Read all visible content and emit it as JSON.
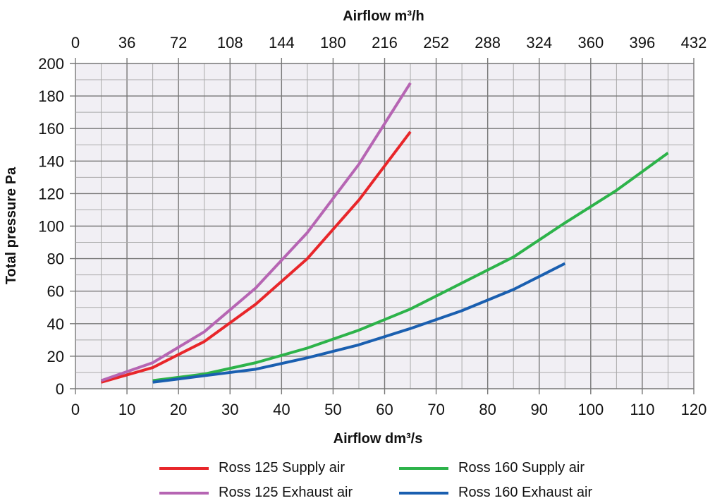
{
  "chart_data": {
    "type": "line",
    "title": "",
    "xlabel": "Airflow dm³/s",
    "x2label": "Airflow m³/h",
    "ylabel": "Total pressure Pa",
    "xlim": [
      0,
      120
    ],
    "ylim": [
      0,
      200
    ],
    "xticks": [
      0,
      10,
      20,
      30,
      40,
      50,
      60,
      70,
      80,
      90,
      100,
      110,
      120
    ],
    "x2ticks": [
      0,
      36,
      72,
      108,
      144,
      180,
      216,
      252,
      288,
      324,
      360,
      396,
      432
    ],
    "yticks": [
      0,
      20,
      40,
      60,
      80,
      100,
      120,
      140,
      160,
      180,
      200
    ],
    "grid": true,
    "legend_position": "bottom",
    "background": "#f1eff4",
    "series": [
      {
        "name": "Ross 125 Supply air",
        "color": "#e8262a",
        "x": [
          5,
          15,
          25,
          35,
          45,
          55,
          65
        ],
        "y": [
          4,
          13,
          29,
          52,
          80,
          116,
          158
        ]
      },
      {
        "name": "Ross 125 Exhaust air",
        "color": "#b665b3",
        "x": [
          5,
          15,
          25,
          35,
          45,
          55,
          65
        ],
        "y": [
          5,
          16,
          35,
          62,
          96,
          138,
          188
        ]
      },
      {
        "name": "Ross 160 Supply air",
        "color": "#2db34a",
        "x": [
          15,
          25,
          35,
          45,
          55,
          65,
          75,
          85,
          95,
          105,
          115
        ],
        "y": [
          5,
          9,
          16,
          25,
          36,
          49,
          65,
          81,
          102,
          122,
          145
        ]
      },
      {
        "name": "Ross 160 Exhaust air",
        "color": "#1a5fb0",
        "x": [
          15,
          25,
          35,
          45,
          55,
          65,
          75,
          85,
          95
        ],
        "y": [
          4,
          8,
          12,
          19,
          27,
          37,
          48,
          61,
          77
        ]
      }
    ]
  }
}
